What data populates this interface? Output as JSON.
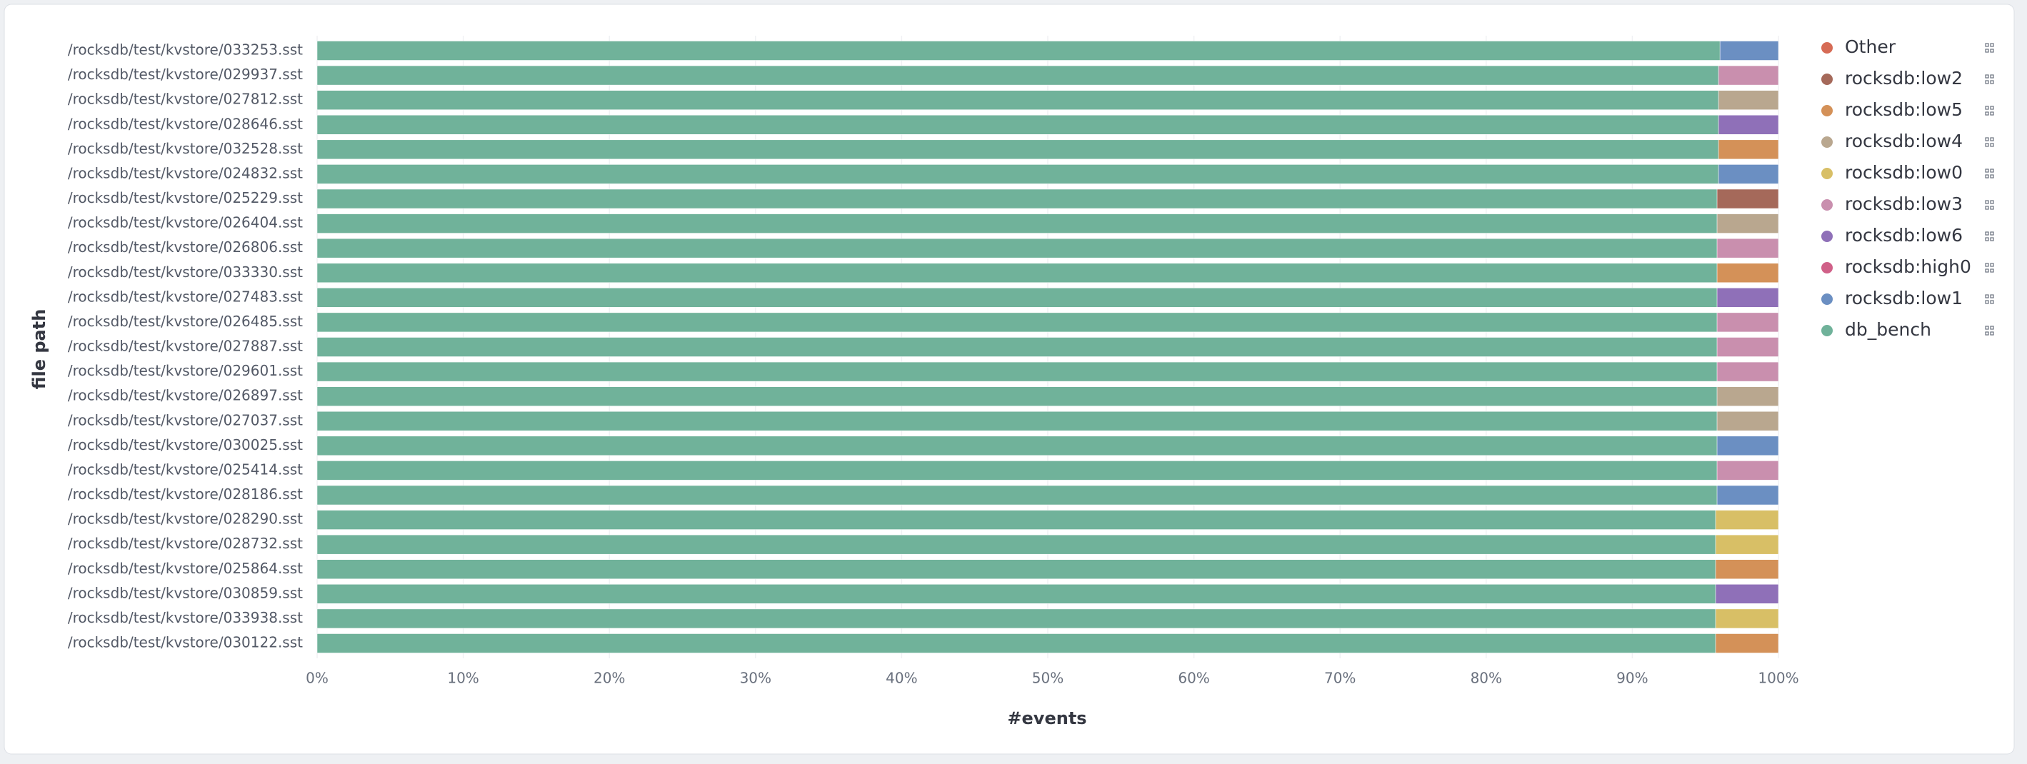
{
  "chart_data": {
    "type": "stacked-bar-horizontal",
    "x_label": "#events",
    "y_label": "file path",
    "categories": [
      "/rocksdb/test/kvstore/033253.sst",
      "/rocksdb/test/kvstore/029937.sst",
      "/rocksdb/test/kvstore/027812.sst",
      "/rocksdb/test/kvstore/028646.sst",
      "/rocksdb/test/kvstore/032528.sst",
      "/rocksdb/test/kvstore/024832.sst",
      "/rocksdb/test/kvstore/025229.sst",
      "/rocksdb/test/kvstore/026404.sst",
      "/rocksdb/test/kvstore/026806.sst",
      "/rocksdb/test/kvstore/033330.sst",
      "/rocksdb/test/kvstore/027483.sst",
      "/rocksdb/test/kvstore/026485.sst",
      "/rocksdb/test/kvstore/027887.sst",
      "/rocksdb/test/kvstore/029601.sst",
      "/rocksdb/test/kvstore/026897.sst",
      "/rocksdb/test/kvstore/027037.sst",
      "/rocksdb/test/kvstore/030025.sst",
      "/rocksdb/test/kvstore/025414.sst",
      "/rocksdb/test/kvstore/028186.sst",
      "/rocksdb/test/kvstore/028290.sst",
      "/rocksdb/test/kvstore/028732.sst",
      "/rocksdb/test/kvstore/025864.sst",
      "/rocksdb/test/kvstore/030859.sst",
      "/rocksdb/test/kvstore/033938.sst",
      "/rocksdb/test/kvstore/030122.sst"
    ],
    "series": [
      {
        "name": "Other",
        "color": "#d66b55",
        "values": [
          null,
          null,
          null,
          null,
          null,
          null,
          null,
          null,
          null,
          null,
          null,
          null,
          null,
          null,
          null,
          null,
          null,
          null,
          null,
          null,
          null,
          null,
          null,
          null,
          null
        ]
      },
      {
        "name": "rocksdb:low2",
        "color": "#a5695a",
        "values": [
          null,
          null,
          null,
          null,
          null,
          null,
          4.2,
          null,
          null,
          null,
          null,
          null,
          null,
          null,
          null,
          null,
          null,
          null,
          null,
          null,
          null,
          null,
          null,
          null,
          null
        ]
      },
      {
        "name": "rocksdb:low5",
        "color": "#d49158",
        "values": [
          null,
          null,
          null,
          null,
          4.1,
          null,
          null,
          null,
          null,
          4.2,
          null,
          null,
          null,
          null,
          null,
          null,
          null,
          null,
          null,
          null,
          null,
          4.3,
          null,
          null,
          4.3
        ]
      },
      {
        "name": "rocksdb:low4",
        "color": "#b9a78f",
        "values": [
          null,
          null,
          4.1,
          null,
          null,
          null,
          null,
          4.2,
          null,
          null,
          null,
          null,
          null,
          null,
          4.2,
          4.2,
          null,
          null,
          null,
          null,
          null,
          null,
          null,
          null,
          null
        ]
      },
      {
        "name": "rocksdb:low0",
        "color": "#d8bf66",
        "values": [
          null,
          null,
          null,
          null,
          null,
          null,
          null,
          null,
          null,
          null,
          null,
          null,
          null,
          null,
          null,
          null,
          null,
          null,
          null,
          4.3,
          4.3,
          null,
          null,
          4.3,
          null
        ]
      },
      {
        "name": "rocksdb:low3",
        "color": "#c98fae",
        "values": [
          null,
          4.1,
          null,
          null,
          null,
          null,
          null,
          null,
          4.2,
          null,
          null,
          4.2,
          4.2,
          4.2,
          null,
          null,
          null,
          4.2,
          null,
          null,
          null,
          null,
          null,
          null,
          null
        ]
      },
      {
        "name": "rocksdb:low6",
        "color": "#8f70b8",
        "values": [
          null,
          null,
          null,
          4.1,
          null,
          null,
          null,
          null,
          null,
          null,
          4.2,
          null,
          null,
          null,
          null,
          null,
          null,
          null,
          null,
          null,
          null,
          null,
          4.3,
          null,
          null
        ]
      },
      {
        "name": "rocksdb:high0",
        "color": "#d06088",
        "values": [
          null,
          null,
          null,
          null,
          null,
          null,
          null,
          null,
          null,
          null,
          null,
          null,
          null,
          null,
          null,
          null,
          null,
          null,
          null,
          null,
          null,
          null,
          null,
          null,
          null
        ]
      },
      {
        "name": "rocksdb:low1",
        "color": "#6b8fc2",
        "values": [
          4.0,
          null,
          null,
          null,
          null,
          4.1,
          null,
          null,
          null,
          null,
          null,
          null,
          null,
          null,
          null,
          null,
          4.2,
          null,
          4.2,
          null,
          null,
          null,
          null,
          null,
          null
        ]
      },
      {
        "name": "db_bench",
        "color": "#70b29a",
        "values": [
          96.0,
          95.9,
          95.9,
          95.9,
          95.9,
          95.9,
          95.8,
          95.8,
          95.8,
          95.8,
          95.8,
          95.8,
          95.8,
          95.8,
          95.8,
          95.8,
          95.8,
          95.8,
          95.8,
          95.7,
          95.7,
          95.7,
          95.7,
          95.7,
          95.7
        ]
      }
    ],
    "xlim": [
      0,
      100
    ],
    "xticks": [
      {
        "value": 0,
        "label": "0%"
      },
      {
        "value": 10,
        "label": "10%"
      },
      {
        "value": 20,
        "label": "20%"
      },
      {
        "value": 30,
        "label": "30%"
      },
      {
        "value": 40,
        "label": "40%"
      },
      {
        "value": 50,
        "label": "50%"
      },
      {
        "value": 60,
        "label": "60%"
      },
      {
        "value": 70,
        "label": "70%"
      },
      {
        "value": 80,
        "label": "80%"
      },
      {
        "value": 90,
        "label": "90%"
      },
      {
        "value": 100,
        "label": "100%"
      }
    ],
    "grid": true,
    "legend": "right"
  }
}
